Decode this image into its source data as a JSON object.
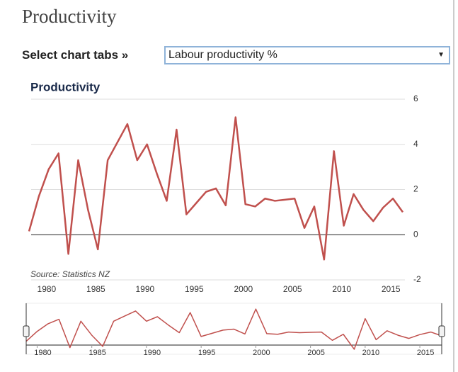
{
  "header": {
    "title": "Productivity"
  },
  "controls": {
    "select_label": "Select chart tabs »",
    "select_value": "Labour productivity %"
  },
  "chart_data": {
    "type": "line",
    "title": "Productivity",
    "source": "Source: Statistics NZ",
    "x": [
      1979,
      1980,
      1981,
      1982,
      1983,
      1984,
      1985,
      1986,
      1987,
      1988,
      1989,
      1990,
      1991,
      1992,
      1993,
      1994,
      1995,
      1996,
      1997,
      1998,
      1999,
      2000,
      2001,
      2002,
      2003,
      2004,
      2005,
      2006,
      2007,
      2008,
      2009,
      2010,
      2011,
      2012,
      2013,
      2014,
      2015,
      2016,
      2017
    ],
    "series": [
      {
        "name": "Labour productivity %",
        "color": "#c0504d",
        "values": [
          0.15,
          1.7,
          2.9,
          3.6,
          -0.85,
          3.3,
          1.1,
          -0.65,
          3.3,
          4.1,
          4.9,
          3.3,
          4.0,
          2.7,
          1.5,
          4.65,
          0.9,
          1.4,
          1.9,
          2.05,
          1.3,
          5.2,
          1.35,
          1.25,
          1.6,
          1.5,
          1.55,
          1.6,
          0.3,
          1.25,
          -1.1,
          3.7,
          0.4,
          1.8,
          1.1,
          0.6,
          1.2,
          1.6,
          1.0
        ]
      }
    ],
    "xlim": [
      1979,
      2017
    ],
    "xticks": [
      1980,
      1985,
      1990,
      1995,
      2000,
      2005,
      2010,
      2015
    ],
    "ylim": [
      -2,
      6
    ],
    "yticks": [
      -2,
      0,
      2,
      4,
      6
    ],
    "grid": true
  }
}
